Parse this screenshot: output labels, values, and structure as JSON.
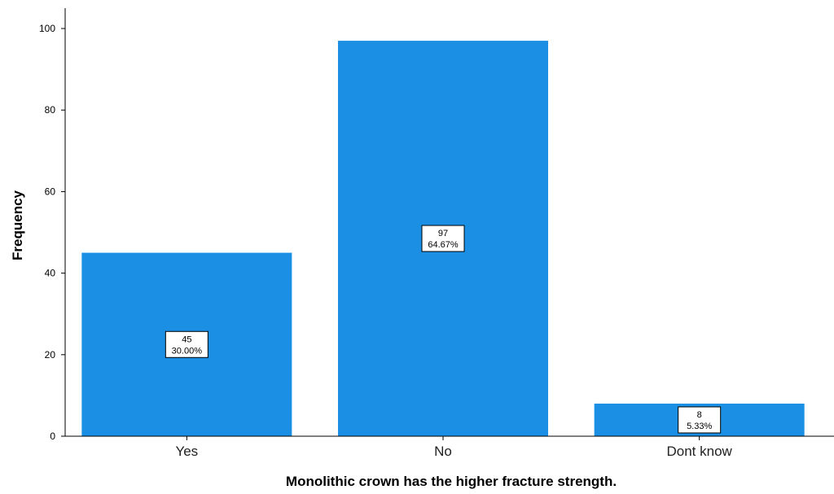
{
  "chart_data": {
    "type": "bar",
    "categories": [
      "Yes",
      "No",
      "Dont know"
    ],
    "values": [
      45,
      97,
      8
    ],
    "percent_labels": [
      "30.00%",
      "64.67%",
      "5.33%"
    ],
    "title": "",
    "xlabel": "Monolithic crown has the higher fracture strength.",
    "ylabel": "Frequency",
    "ylim": [
      0,
      105
    ],
    "yticks": [
      0,
      20,
      40,
      60,
      80,
      100
    ],
    "grid": false,
    "legend": "none",
    "bar_color": "#1a8fe3"
  }
}
